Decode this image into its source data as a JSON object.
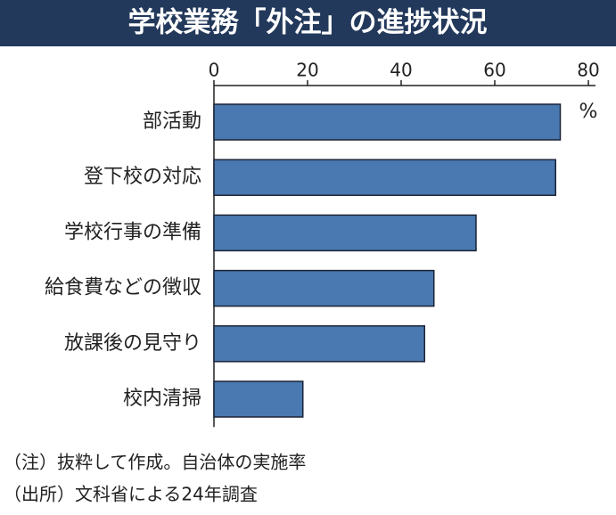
{
  "chart_data": {
    "type": "bar",
    "orientation": "horizontal",
    "title": "学校業務「外注」の進捗状況",
    "categories": [
      "部活動",
      "登下校の対応",
      "学校行事の準備",
      "給食費などの徴収",
      "放課後の見守り",
      "校内清掃"
    ],
    "values": [
      74,
      73,
      56,
      47,
      45,
      19
    ],
    "color": "#4a78b0",
    "xlim": [
      0,
      80
    ],
    "xticks": [
      0,
      20,
      40,
      60,
      80
    ],
    "unit": "%",
    "grid": false,
    "notes": [
      "（注）抜粋して作成。自治体の実施率",
      "（出所）文科省による24年調査"
    ]
  }
}
